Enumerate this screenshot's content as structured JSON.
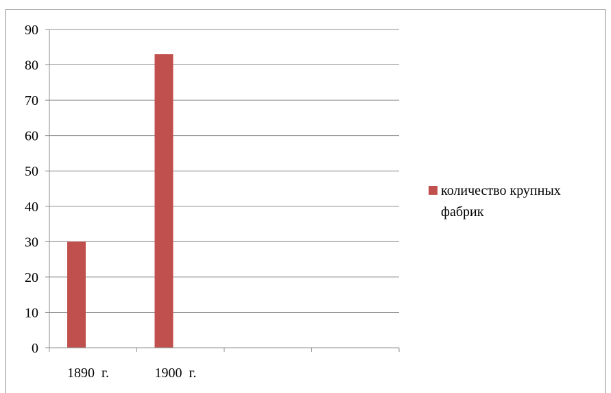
{
  "chart_data": {
    "type": "bar",
    "title": "",
    "xlabel": "",
    "ylabel": "",
    "categories": [
      "1890  г.",
      "1900  г.",
      "",
      ""
    ],
    "series": [
      {
        "name": "количество крупных фабрик",
        "values": [
          30,
          83,
          null,
          null
        ],
        "color": "#c0504d"
      }
    ],
    "ylim": [
      0,
      90
    ],
    "yticks": [
      0,
      10,
      20,
      30,
      40,
      50,
      60,
      70,
      80,
      90
    ],
    "grid": true,
    "legend": {
      "position": "right",
      "lines": [
        "количество крупных",
        "фабрик"
      ]
    }
  }
}
